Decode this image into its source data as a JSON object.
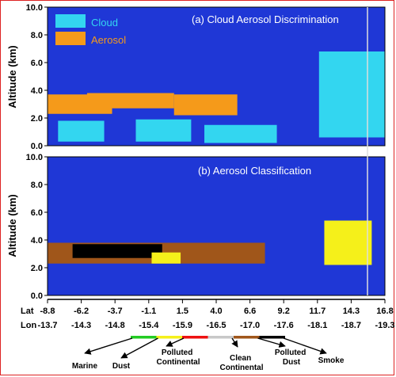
{
  "chart_data": [
    {
      "type": "heatmap",
      "title": "(a) Cloud Aerosol Discrimination",
      "ylabel": "Altitude (km)",
      "ylim": [
        0,
        10
      ],
      "yticks": [
        "0.0",
        "2.0",
        "4.0",
        "6.0",
        "8.0",
        "10.0"
      ],
      "legend": [
        {
          "label": "Cloud",
          "color": "#33d6f0"
        },
        {
          "label": "Aerosol",
          "color": "#f59a1a"
        }
      ],
      "legend_placement": "top-left",
      "colors": {
        "background": "#1f37d6",
        "cloud": "#33d6f0",
        "aerosol": "#f59a1a",
        "surface": "#000000"
      },
      "regions": [
        {
          "class": "aerosol",
          "lat": [
            -8.8,
            -3.9
          ],
          "alt": [
            2.3,
            3.7
          ]
        },
        {
          "class": "aerosol",
          "lat": [
            -5.8,
            0.8
          ],
          "alt": [
            2.7,
            3.8
          ]
        },
        {
          "class": "aerosol",
          "lat": [
            0.8,
            5.6
          ],
          "alt": [
            2.2,
            3.7
          ]
        },
        {
          "class": "aerosol",
          "lat": [
            12.0,
            15.7
          ],
          "alt": [
            2.6,
            5.0
          ]
        },
        {
          "class": "cloud",
          "lat": [
            -8.0,
            -4.5
          ],
          "alt": [
            0.3,
            1.8
          ]
        },
        {
          "class": "cloud",
          "lat": [
            -2.1,
            2.1
          ],
          "alt": [
            0.3,
            1.9
          ]
        },
        {
          "class": "cloud",
          "lat": [
            3.1,
            8.6
          ],
          "alt": [
            0.2,
            1.5
          ]
        },
        {
          "class": "cloud",
          "lat": [
            11.8,
            16.8
          ],
          "alt": [
            0.6,
            6.8
          ]
        }
      ]
    },
    {
      "type": "heatmap",
      "title": "(b) Aerosol  Classification",
      "ylabel": "Altitude (km)",
      "ylim": [
        0,
        10
      ],
      "yticks": [
        "0.0",
        "2.0",
        "4.0",
        "6.0",
        "8.0",
        "10.0"
      ],
      "colors": {
        "background": "#1f37d6",
        "dust": "#f5f01a",
        "polluted_dust": "#a0561a",
        "smoke": "#000000"
      },
      "regions": [
        {
          "class": "polluted_dust",
          "lat": [
            -8.8,
            7.7
          ],
          "alt": [
            2.3,
            3.8
          ]
        },
        {
          "class": "smoke",
          "lat": [
            -6.9,
            -0.1
          ],
          "alt": [
            2.7,
            3.7
          ]
        },
        {
          "class": "dust",
          "lat": [
            -0.9,
            1.3
          ],
          "alt": [
            2.3,
            3.1
          ]
        },
        {
          "class": "dust",
          "lat": [
            12.2,
            15.8
          ],
          "alt": [
            2.2,
            5.4
          ]
        }
      ]
    }
  ],
  "x_axis": {
    "lat_label": "Lat",
    "lon_label": "Lon",
    "lat": [
      "-8.8",
      "-6.2",
      "-3.7",
      "-1.1",
      "1.5",
      "4.0",
      "6.6",
      "9.2",
      "11.7",
      "14.3",
      "16.8"
    ],
    "lon": [
      "-13.7",
      "-14.3",
      "-14.8",
      "-15.4",
      "-15.9",
      "-16.5",
      "-17.0",
      "-17.6",
      "-18.1",
      "-18.7",
      "-19.3"
    ]
  },
  "aerosol_types": [
    {
      "label": "Marine",
      "color": "#22cc22"
    },
    {
      "label": "Dust",
      "color": "#f5f01a"
    },
    {
      "label": "Polluted Continental",
      "color": "#ee1111"
    },
    {
      "label": "Clean Continental",
      "color": "#c8c8c8"
    },
    {
      "label": "Polluted Dust",
      "color": "#a0561a"
    },
    {
      "label": "Smoke",
      "color": "#000000"
    }
  ]
}
